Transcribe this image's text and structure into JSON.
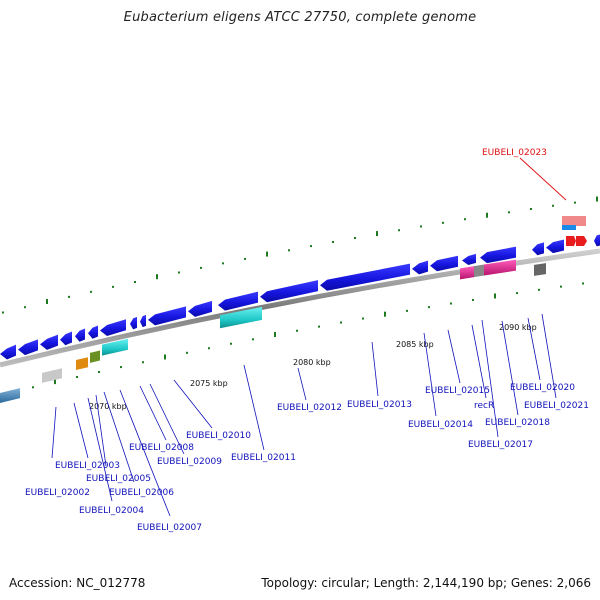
{
  "title": "Eubacterium eligens ATCC 27750, complete genome",
  "footer": {
    "accession": "Accession: NC_012778",
    "summary": "Topology: circular; Length: 2,144,190 bp; Genes: 2,066"
  },
  "axis_ticks": [
    "2070 kbp",
    "2075 kbp",
    "2080 kbp",
    "2085 kbp",
    "2090 kbp"
  ],
  "colors": {
    "blue": "#1a1ae8",
    "cyan": "#20c8c8",
    "pink": "#e8208e",
    "red": "#e81c1c",
    "label": "#1111bb",
    "label_highlight": "#dd1111",
    "tick": "#1e7a1e"
  },
  "gene_labels": [
    "EUBELI_02002",
    "EUBELI_02003",
    "EUBELI_02004",
    "EUBELI_02005",
    "EUBELI_02006",
    "EUBELI_02007",
    "EUBELI_02008",
    "EUBELI_02009",
    "EUBELI_02010",
    "EUBELI_02011",
    "EUBELI_02012",
    "EUBELI_02013",
    "EUBELI_02014",
    "EUBELI_02015",
    "recR",
    "EUBELI_02017",
    "EUBELI_02018",
    "EUBELI_02020",
    "EUBELI_02021"
  ],
  "highlight_label": "EUBELI_02023"
}
